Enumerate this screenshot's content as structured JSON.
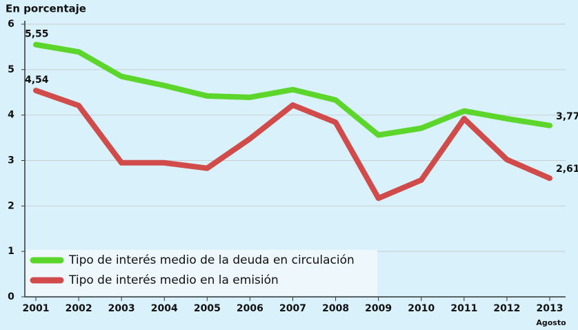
{
  "chart_data": {
    "type": "line",
    "title": "En porcentaje",
    "categories": [
      "2001",
      "2002",
      "2003",
      "2004",
      "2005",
      "2006",
      "2007",
      "2008",
      "2009",
      "2010",
      "2011",
      "2012",
      "2013"
    ],
    "annotation": "Agosto",
    "series": [
      {
        "name": "Tipo de interés medio de la deuda en circulación",
        "color": "#5cd62a",
        "values": [
          5.55,
          5.39,
          4.85,
          4.65,
          4.42,
          4.39,
          4.56,
          4.33,
          3.56,
          3.71,
          4.09,
          3.92,
          3.77
        ],
        "value_labels": [
          "5,55",
          null,
          null,
          null,
          null,
          null,
          null,
          null,
          null,
          null,
          null,
          null,
          "3,77"
        ]
      },
      {
        "name": "Tipo de interés medio en la emisión",
        "color": "#d24b4b",
        "values": [
          4.54,
          4.21,
          2.95,
          2.95,
          2.83,
          3.48,
          4.22,
          3.84,
          2.17,
          2.57,
          3.92,
          3.02,
          2.61
        ],
        "value_labels": [
          "4,54",
          null,
          null,
          null,
          null,
          null,
          null,
          null,
          null,
          null,
          null,
          null,
          "2,61"
        ]
      }
    ],
    "ylim": [
      0,
      6
    ],
    "yticks": [
      0,
      1,
      2,
      3,
      4,
      5,
      6
    ],
    "grid": true,
    "legend": "lower left"
  }
}
